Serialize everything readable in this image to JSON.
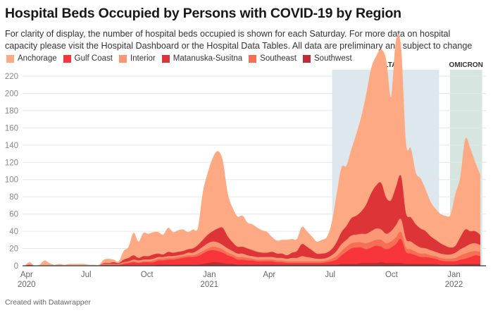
{
  "chart_data": {
    "type": "area",
    "stacked": true,
    "title": "Hospital Beds Occupied by Persons with COVID-19 by Region",
    "subtitle": "For clarity of display, the number of hospital beds occupied is shown for each Saturday. For more data on hospital capacity please visit the Hospital Dashboard or the Hospital Data Tables. All data are preliminary and subject to change",
    "xlabel": "",
    "ylabel": "",
    "ylim": [
      0,
      220
    ],
    "yticks": [
      0,
      20,
      40,
      60,
      80,
      100,
      120,
      140,
      160,
      180,
      200,
      220
    ],
    "grid": true,
    "legend_position": "top-left",
    "x_start_week": 0,
    "x_ticks": [
      {
        "week": 0.4,
        "label": "Apr",
        "year": "2020"
      },
      {
        "week": 12.4,
        "label": "Jul",
        "year": ""
      },
      {
        "week": 24.7,
        "label": "Oct",
        "year": ""
      },
      {
        "week": 37.3,
        "label": "Jan",
        "year": "2021"
      },
      {
        "week": 49.4,
        "label": "Apr",
        "year": ""
      },
      {
        "week": 61.7,
        "label": "Jul",
        "year": ""
      },
      {
        "week": 74.1,
        "label": "Oct",
        "year": ""
      },
      {
        "week": 86.7,
        "label": "Jan",
        "year": "2022"
      }
    ],
    "bands": [
      {
        "label": "DELTA",
        "from_week": 62.1,
        "to_week": 83.7,
        "color": "#dce7ee"
      },
      {
        "label": "OMICRON",
        "from_week": 85.9,
        "to_week": 92.4,
        "color": "#d6e5e0"
      }
    ],
    "series_stack_order": [
      "Southwest",
      "Gulf Coast",
      "Southeast",
      "Interior",
      "Matanuska-Susitna",
      "Anchorage"
    ],
    "series": [
      {
        "name": "Anchorage",
        "color": "#fdaa84",
        "values": [
          0,
          3,
          0,
          1,
          6,
          3,
          1,
          2,
          1,
          2,
          2,
          2,
          2,
          1,
          1,
          1,
          4,
          5,
          3,
          2,
          10,
          13,
          26,
          19,
          27,
          26,
          26,
          25,
          23,
          28,
          24,
          25,
          25,
          20,
          22,
          20,
          55,
          72,
          85,
          90,
          78,
          50,
          40,
          35,
          36,
          30,
          30,
          28,
          26,
          24,
          17,
          15,
          16,
          18,
          16,
          14,
          20,
          18,
          16,
          14,
          16,
          18,
          30,
          55,
          75,
          70,
          80,
          95,
          110,
          128,
          145,
          150,
          155,
          160,
          120,
          170,
          150,
          82,
          80,
          60,
          58,
          48,
          40,
          36,
          34,
          35,
          38,
          60,
          70,
          105,
          96,
          80,
          70
        ]
      },
      {
        "name": "Gulf Coast",
        "color": "#f8353a",
        "values": [
          0,
          0,
          0,
          0,
          0,
          0,
          0,
          0,
          0,
          0,
          0,
          0,
          0,
          0,
          0,
          0,
          1,
          1,
          1,
          1,
          2,
          3,
          4,
          3,
          4,
          4,
          4,
          5,
          5,
          6,
          6,
          7,
          8,
          9,
          9,
          10,
          12,
          14,
          14,
          13,
          12,
          10,
          8,
          6,
          6,
          5,
          5,
          4,
          4,
          4,
          4,
          3,
          3,
          2,
          2,
          2,
          2,
          2,
          2,
          2,
          2,
          3,
          4,
          6,
          10,
          14,
          18,
          19,
          18,
          16,
          18,
          20,
          18,
          16,
          18,
          22,
          28,
          14,
          12,
          10,
          8,
          8,
          7,
          6,
          5,
          4,
          4,
          4,
          5,
          6,
          8,
          10,
          9
        ]
      },
      {
        "name": "Interior",
        "color": "#fc9775",
        "values": [
          0,
          0,
          0,
          0,
          0,
          0,
          0,
          0,
          0,
          0,
          0,
          0,
          0,
          0,
          0,
          0,
          1,
          1,
          1,
          1,
          1,
          1,
          2,
          2,
          2,
          2,
          2,
          2,
          2,
          2,
          2,
          2,
          2,
          3,
          3,
          4,
          5,
          6,
          6,
          6,
          5,
          5,
          4,
          4,
          4,
          3,
          3,
          3,
          3,
          3,
          3,
          3,
          3,
          3,
          4,
          4,
          6,
          5,
          4,
          3,
          3,
          3,
          4,
          6,
          8,
          8,
          9,
          9,
          10,
          11,
          12,
          13,
          12,
          11,
          12,
          14,
          15,
          10,
          9,
          8,
          7,
          6,
          6,
          5,
          5,
          5,
          5,
          6,
          7,
          8,
          9,
          9,
          8
        ]
      },
      {
        "name": "Matanuska-Susitna",
        "color": "#dd3437",
        "values": [
          0,
          1,
          0,
          0,
          0,
          0,
          0,
          0,
          0,
          0,
          0,
          0,
          0,
          0,
          0,
          0,
          1,
          1,
          2,
          1,
          3,
          4,
          5,
          3,
          4,
          4,
          5,
          4,
          3,
          5,
          4,
          4,
          4,
          4,
          5,
          6,
          8,
          10,
          12,
          16,
          20,
          14,
          10,
          8,
          8,
          8,
          7,
          6,
          5,
          5,
          6,
          5,
          5,
          4,
          6,
          8,
          14,
          12,
          9,
          6,
          6,
          6,
          7,
          10,
          14,
          16,
          20,
          22,
          26,
          34,
          44,
          50,
          54,
          42,
          36,
          44,
          50,
          30,
          28,
          24,
          22,
          20,
          16,
          14,
          12,
          10,
          8,
          8,
          14,
          20,
          15,
          14,
          12
        ]
      },
      {
        "name": "Southeast",
        "color": "#f66f55",
        "values": [
          0,
          0,
          0,
          0,
          0,
          0,
          0,
          0,
          0,
          0,
          0,
          0,
          0,
          0,
          0,
          0,
          0,
          0,
          0,
          0,
          1,
          1,
          1,
          1,
          1,
          1,
          2,
          2,
          2,
          2,
          2,
          2,
          2,
          2,
          2,
          3,
          3,
          3,
          4,
          4,
          4,
          3,
          3,
          3,
          3,
          3,
          2,
          2,
          2,
          2,
          2,
          2,
          2,
          2,
          2,
          2,
          2,
          2,
          2,
          2,
          2,
          2,
          3,
          4,
          5,
          6,
          6,
          6,
          6,
          7,
          7,
          7,
          8,
          7,
          7,
          8,
          8,
          5,
          5,
          4,
          4,
          4,
          3,
          3,
          3,
          3,
          3,
          4,
          5,
          6,
          6,
          5,
          5
        ]
      },
      {
        "name": "Southwest",
        "color": "#be2d33",
        "values": [
          0,
          0,
          0,
          0,
          0,
          0,
          0,
          0,
          0,
          0,
          0,
          0,
          0,
          0,
          0,
          0,
          0,
          0,
          0,
          0,
          0,
          0,
          0,
          0,
          0,
          0,
          0,
          1,
          1,
          1,
          1,
          1,
          1,
          1,
          1,
          1,
          2,
          3,
          4,
          4,
          3,
          2,
          2,
          1,
          1,
          1,
          1,
          1,
          1,
          1,
          1,
          1,
          1,
          1,
          1,
          1,
          1,
          1,
          1,
          1,
          1,
          1,
          1,
          1,
          2,
          2,
          2,
          2,
          3,
          3,
          3,
          3,
          4,
          3,
          3,
          3,
          3,
          2,
          2,
          2,
          2,
          2,
          2,
          2,
          1,
          1,
          1,
          1,
          2,
          2,
          2,
          2,
          2
        ]
      }
    ]
  },
  "footer": "Created with Datawrapper"
}
